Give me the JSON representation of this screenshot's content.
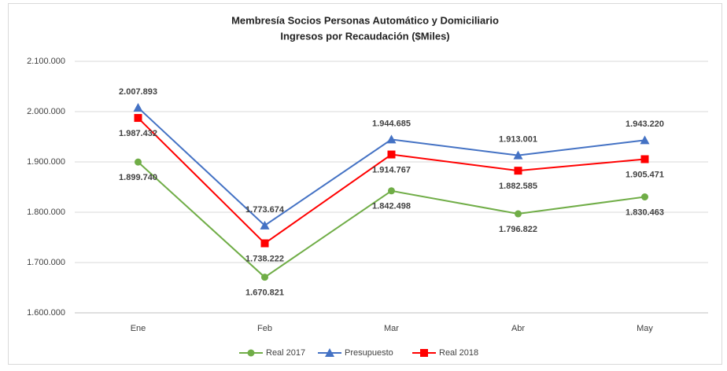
{
  "chart_data": {
    "type": "line",
    "title": "Membresía Socios Personas Automático y Domiciliario",
    "subtitle": "Ingresos por Recaudación ($Miles)",
    "categories": [
      "Ene",
      "Feb",
      "Mar",
      "Abr",
      "May"
    ],
    "series": [
      {
        "name": "Real 2017",
        "color": "#70ad47",
        "marker": "circle",
        "values": [
          1899740,
          1670821,
          1842498,
          1796822,
          1830463
        ],
        "value_labels": [
          "1.899.740",
          "1.670.821",
          "1.842.498",
          "1.796.822",
          "1.830.463"
        ]
      },
      {
        "name": "Presupuesto",
        "color": "#4472c4",
        "marker": "triangle",
        "values": [
          2007893,
          1773674,
          1944685,
          1913001,
          1943220
        ],
        "value_labels": [
          "2.007.893",
          "1.773.674",
          "1.944.685",
          "1.913.001",
          "1.943.220"
        ]
      },
      {
        "name": "Real 2018",
        "color": "#ff0000",
        "marker": "square",
        "values": [
          1987432,
          1738222,
          1914767,
          1882585,
          1905471
        ],
        "value_labels": [
          "1.987.432",
          "1.738.222",
          "1.914.767",
          "1.882.585",
          "1.905.471"
        ]
      }
    ],
    "ylim": [
      1600000,
      2100000
    ],
    "yticks": [
      {
        "value": 1600000,
        "label": "1.600.000"
      },
      {
        "value": 1700000,
        "label": "1.700.000"
      },
      {
        "value": 1800000,
        "label": "1.800.000"
      },
      {
        "value": 1900000,
        "label": "1.900.000"
      },
      {
        "value": 2000000,
        "label": "2.000.000"
      },
      {
        "value": 2100000,
        "label": "2.100.000"
      }
    ],
    "grid": true,
    "legend": "bottom"
  }
}
